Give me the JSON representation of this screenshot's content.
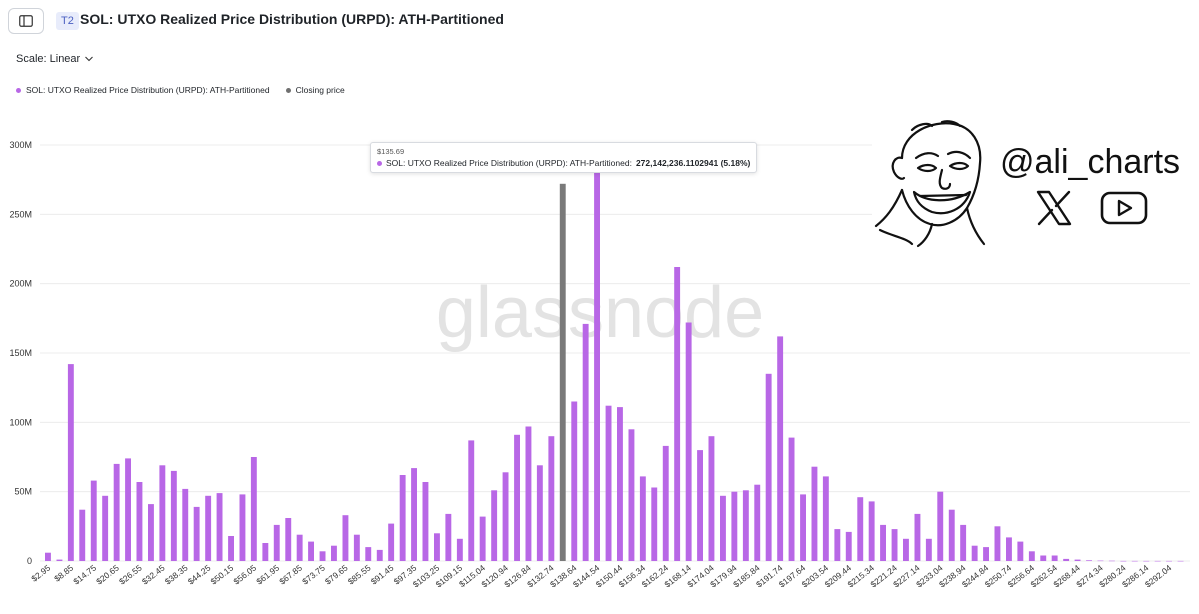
{
  "header": {
    "tier_badge": "T2",
    "title": "SOL: UTXO Realized Price Distribution (URPD): ATH-Partitioned"
  },
  "controls": {
    "scale_label": "Scale: Linear"
  },
  "legend": [
    {
      "label": "SOL: UTXO Realized Price Distribution (URPD): ATH-Partitioned",
      "color": "#b867e6"
    },
    {
      "label": "Closing price",
      "color": "#707070"
    }
  ],
  "tooltip": {
    "price": "$135.69",
    "series": "SOL: UTXO Realized Price Distribution (URPD): ATH-Partitioned:",
    "value": "272,142,236.1102941 (5.18%)"
  },
  "watermark": "glassnode",
  "branding": {
    "handle": "@ali_charts",
    "icons": [
      "meme-face-icon",
      "x-logo-icon",
      "youtube-icon"
    ]
  },
  "colors": {
    "bar": "#b867e6",
    "closing": "#7a7a7a",
    "grid": "#ececec",
    "axis_text": "#333333"
  },
  "chart_data": {
    "type": "bar",
    "title": "SOL: UTXO Realized Price Distribution (URPD): ATH-Partitioned",
    "ylim": [
      0,
      310000000
    ],
    "y_ticks": [
      0,
      50000000,
      100000000,
      150000000,
      200000000,
      250000000,
      300000000
    ],
    "y_tick_labels": [
      "0",
      "50M",
      "100M",
      "150M",
      "200M",
      "250M",
      "300M"
    ],
    "x_tick_labels": [
      "$2.95",
      "$8.85",
      "$14.75",
      "$20.65",
      "$26.55",
      "$32.45",
      "$38.35",
      "$44.25",
      "$50.15",
      "$56.05",
      "$61.95",
      "$67.85",
      "$73.75",
      "$79.65",
      "$85.55",
      "$91.45",
      "$97.35",
      "$103.25",
      "$109.15",
      "$115.04",
      "$120.94",
      "$126.84",
      "$132.74",
      "$138.64",
      "$144.54",
      "$150.44",
      "$156.34",
      "$162.24",
      "$168.14",
      "$174.04",
      "$179.94",
      "$185.84",
      "$191.74",
      "$197.64",
      "$203.54",
      "$209.44",
      "$215.34",
      "$221.24",
      "$227.14",
      "$233.04",
      "$238.94",
      "$244.84",
      "$250.74",
      "$256.64",
      "$262.54",
      "$268.44",
      "$274.34",
      "$280.24",
      "$286.14",
      "$292.04"
    ],
    "closing_price_index": 45,
    "closing_price_label": "Closing price",
    "bin_count": 100,
    "values": [
      6000000,
      1000000,
      142000000,
      37000000,
      58000000,
      47000000,
      70000000,
      74000000,
      57000000,
      41000000,
      69000000,
      65000000,
      52000000,
      39000000,
      47000000,
      49000000,
      18000000,
      48000000,
      75000000,
      13000000,
      26000000,
      31000000,
      19000000,
      14000000,
      7000000,
      11000000,
      33000000,
      19000000,
      10000000,
      8000000,
      27000000,
      62000000,
      67000000,
      57000000,
      20000000,
      34000000,
      16000000,
      87000000,
      32000000,
      51000000,
      64000000,
      91000000,
      97000000,
      69000000,
      90000000,
      272000000,
      115000000,
      171000000,
      285000000,
      112000000,
      111000000,
      95000000,
      61000000,
      53000000,
      83000000,
      212000000,
      172000000,
      80000000,
      90000000,
      47000000,
      50000000,
      51000000,
      55000000,
      135000000,
      162000000,
      89000000,
      48000000,
      68000000,
      61000000,
      23000000,
      21000000,
      46000000,
      43000000,
      26000000,
      23000000,
      16000000,
      34000000,
      16000000,
      50000000,
      37000000,
      26000000,
      11000000,
      10000000,
      25000000,
      17000000,
      14000000,
      7000000,
      4000000,
      4000000,
      1500000,
      1000000,
      500000,
      300000,
      200000,
      100000,
      100000,
      100000,
      100000,
      100000,
      100000
    ]
  }
}
